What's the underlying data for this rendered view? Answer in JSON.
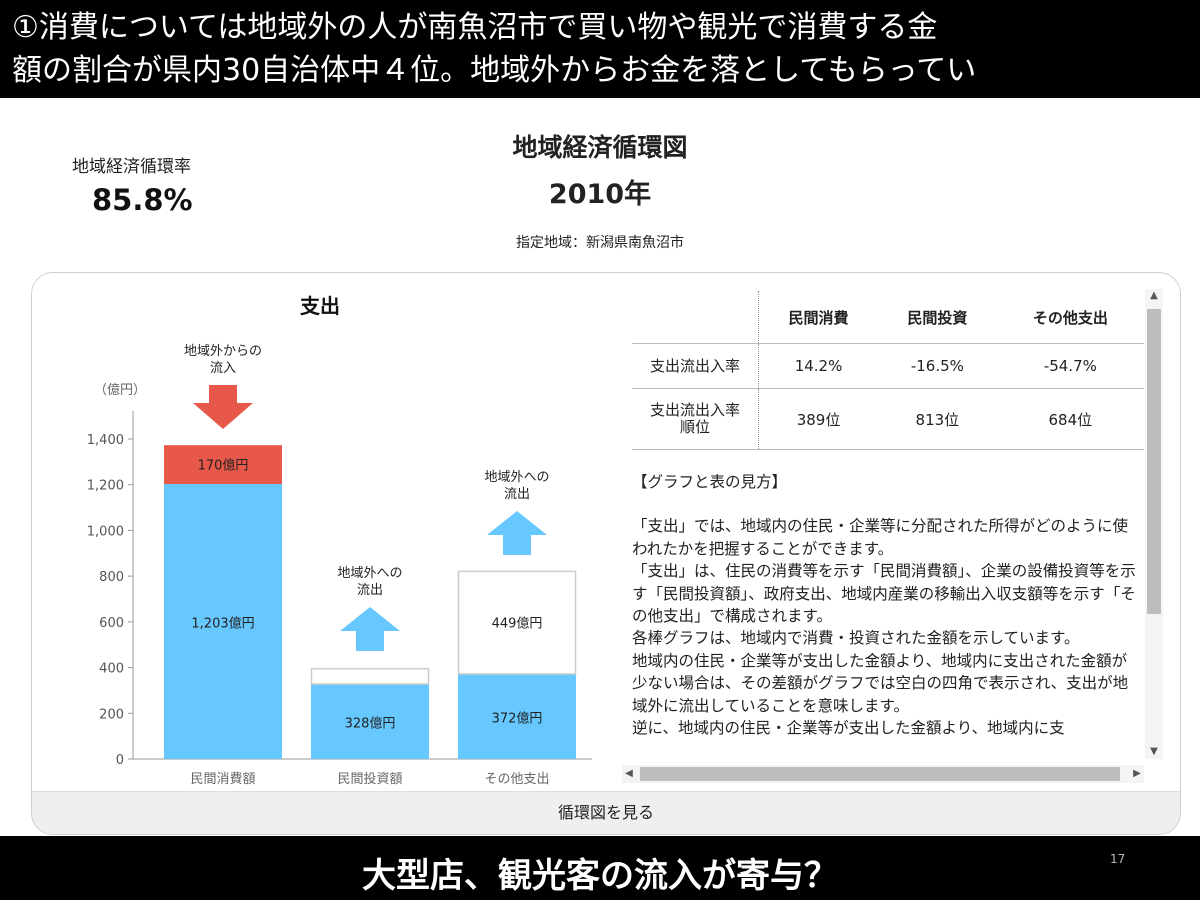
{
  "slide": {
    "top_text_line1": "①消費については地域外の人が南魚沼市で買い物や観光で消費する金",
    "top_text_line2": "額の割合が県内30自治体中４位。地域外からお金を落としてもらってい",
    "bottom_caption": "大型店、観光客の流入が寄与？",
    "page_number": "17"
  },
  "header": {
    "rate_label": "地域経済循環率",
    "rate_value": "85.8%",
    "title": "地域経済循環図",
    "year": "2010年",
    "region": "指定地域：新潟県南魚沼市"
  },
  "colors": {
    "blue": "#66c8ff",
    "red": "#e8584a",
    "outline": "#cccccc"
  },
  "chart_data": {
    "type": "bar",
    "title": "支出",
    "ylabel": "（億円）",
    "ylim": [
      0,
      1400
    ],
    "yticks": [
      0,
      200,
      400,
      600,
      800,
      1000,
      1200,
      1400
    ],
    "ytick_labels": [
      "0",
      "200",
      "400",
      "600",
      "800",
      "1,000",
      "1,200",
      "1,400"
    ],
    "categories": [
      "民間消費額",
      "民間投資額",
      "その他支出"
    ],
    "series": [
      {
        "values": [
          1203,
          328,
          372
        ],
        "labels": [
          "1,203億円",
          "328億円",
          "372億円"
        ]
      },
      {
        "values": [
          170,
          0,
          0
        ],
        "labels": [
          "170億円",
          "",
          ""
        ]
      },
      {
        "values": [
          0,
          67,
          449
        ],
        "labels": [
          "",
          "",
          "449億円"
        ]
      }
    ],
    "annotations": [
      {
        "text_line1": "地域外からの",
        "text_line2": "流入",
        "category": "民間消費額",
        "arrow": "down"
      },
      {
        "text_line1": "地域外への",
        "text_line2": "流出",
        "category": "民間投資額",
        "arrow": "up"
      },
      {
        "text_line1": "地域外への",
        "text_line2": "流出",
        "category": "その他支出",
        "arrow": "up"
      }
    ]
  },
  "table": {
    "columns": [
      "民間消費",
      "民間投資",
      "その他支出"
    ],
    "rows": [
      {
        "header": "支出流出入率",
        "cells": [
          "14.2%",
          "-16.5%",
          "-54.7%"
        ]
      },
      {
        "header_line1": "支出流出入率",
        "header_line2": "順位",
        "cells": [
          "389位",
          "813位",
          "684位"
        ]
      }
    ]
  },
  "guide": {
    "heading": "【グラフと表の見方】",
    "paragraphs": [
      "「支出」では、地域内の住民・企業等に分配された所得がどのように使われたかを把握することができます。",
      "「支出」は、住民の消費等を示す「民間消費額」、企業の設備投資等を示す「民間投資額」、政府支出、地域内産業の移輸出入収支額等を示す「その他支出」で構成されます。",
      "各棒グラフは、地域内で消費・投資された金額を示しています。",
      "地域内の住民・企業等が支出した金額より、地域内に支出された金額が少ない場合は、その差額がグラフでは空白の四角で表示され、支出が地域外に流出していることを意味します。",
      "逆に、地域内の住民・企業等が支出した金額より、地域内に支"
    ]
  },
  "footer": {
    "button_label": "循環図を見る"
  }
}
